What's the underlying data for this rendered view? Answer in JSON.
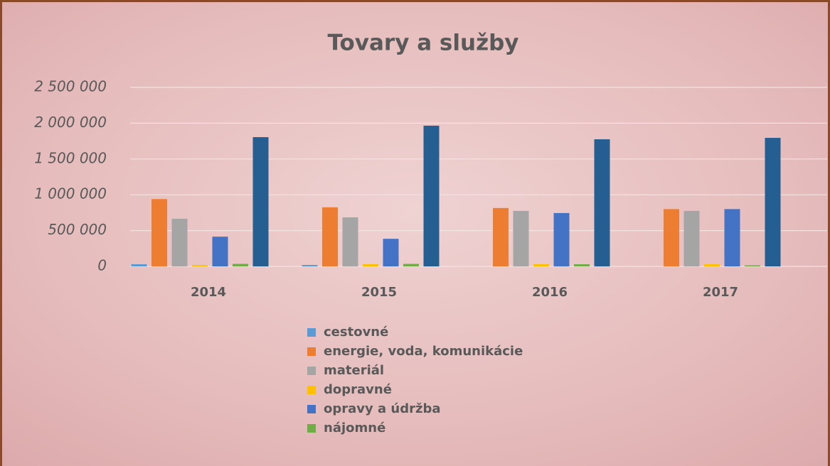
{
  "chart_data": {
    "type": "bar",
    "title": "Tovary a služby",
    "categories": [
      "2014",
      "2015",
      "2016",
      "2017"
    ],
    "series": [
      {
        "name": "cestovné",
        "color": "#5b9bd5",
        "values": [
          30000,
          20000,
          0,
          0
        ]
      },
      {
        "name": "energie, voda, komunikácie",
        "color": "#ed7d31",
        "values": [
          940000,
          825000,
          815000,
          800000
        ]
      },
      {
        "name": "materiál",
        "color": "#a5a5a5",
        "values": [
          665000,
          685000,
          775000,
          775000
        ]
      },
      {
        "name": "dopravné",
        "color": "#ffc000",
        "values": [
          20000,
          30000,
          30000,
          30000
        ]
      },
      {
        "name": "opravy a údržba",
        "color": "#4472c4",
        "values": [
          415000,
          385000,
          745000,
          800000
        ]
      },
      {
        "name": "nájomné",
        "color": "#70ad47",
        "values": [
          35000,
          35000,
          30000,
          15000
        ]
      },
      {
        "color": "#255e91",
        "values": [
          1805000,
          1965000,
          1775000,
          1795000
        ]
      }
    ],
    "ylim": [
      0,
      2500000
    ],
    "yticks": [
      0,
      {
        "value": 500000,
        "label": "500 000"
      },
      {
        "value": 1000000,
        "label": "1 000 000"
      },
      {
        "value": 1500000,
        "label": "1 500 000"
      },
      {
        "value": 2000000,
        "label": "2 000 000"
      },
      {
        "value": 2500000,
        "label": "2 500 000"
      }
    ],
    "grid": true,
    "legend": "bottom"
  }
}
